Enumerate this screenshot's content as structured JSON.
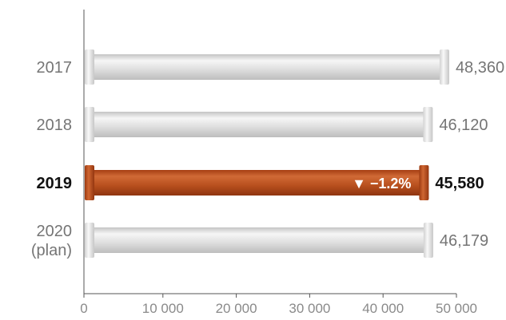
{
  "chart_data": {
    "type": "bar",
    "orientation": "horizontal",
    "categories": [
      [
        "2017"
      ],
      [
        "2018"
      ],
      [
        "2019"
      ],
      [
        "2020",
        "(plan)"
      ]
    ],
    "values": [
      48360,
      46120,
      45580,
      46179
    ],
    "value_labels": [
      "48,360",
      "46,120",
      "45,580",
      "46,179"
    ],
    "highlight_index": 2,
    "annotation": {
      "index": 2,
      "text": "▼ −1.2%"
    },
    "xlim": [
      0,
      50000
    ],
    "xticks": [
      0,
      10000,
      20000,
      30000,
      40000,
      50000
    ],
    "xtick_labels": [
      "0",
      "10 000",
      "20 000",
      "30 000",
      "40 000",
      "50 000"
    ],
    "grid": false,
    "colors": {
      "bar": "#dcdcdc",
      "bar_highlight": "#b5491b",
      "axis": "#555555"
    }
  }
}
